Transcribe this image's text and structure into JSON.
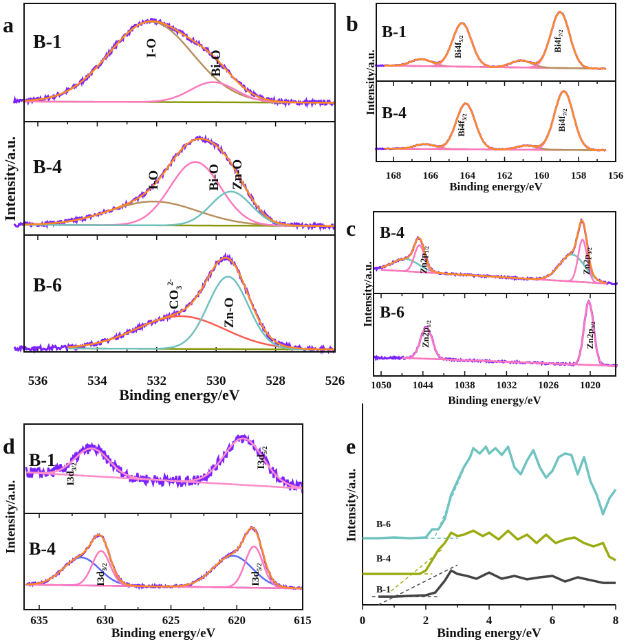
{
  "chart_data": [
    {
      "id": "a",
      "type": "line",
      "panel_letter": "a",
      "xlabel": "Binding energy/eV",
      "ylabel": "Intensity/a.u.",
      "xlim": [
        536.8,
        526
      ],
      "xticks": [
        536,
        534,
        532,
        530,
        528,
        526
      ],
      "minor_step": 1,
      "raw_color": "#7b22ff",
      "envelope_color": "#ff8a1e",
      "baseline_color": "#8a9a10",
      "noise": 0.018,
      "subplots": [
        {
          "sample": "B-1",
          "raw_range": [
            536.8,
            526
          ],
          "fit_range": [
            536.5,
            526
          ],
          "baseline": [
            0.17,
            0.16
          ],
          "components": [
            {
              "label": {
                "text": "I-O"
              },
              "center": 532.2,
              "fwhm": 3.3,
              "amp": 0.68,
              "color": "#b8905e"
            },
            {
              "label": {
                "text": "Bi-O"
              },
              "center": 530.1,
              "fwhm": 1.8,
              "amp": 0.17,
              "color": "#ff78be"
            }
          ]
        },
        {
          "sample": "B-4",
          "raw_range": [
            536.8,
            526
          ],
          "fit_range": [
            536.5,
            526
          ],
          "baseline": [
            0.09,
            0.08
          ],
          "components": [
            {
              "label": {
                "text": "I-O"
              },
              "center": 532.1,
              "fwhm": 3.5,
              "amp": 0.21,
              "color": "#b8905e"
            },
            {
              "label": {
                "text": "Bi-O"
              },
              "center": 530.7,
              "fwhm": 2.0,
              "amp": 0.56,
              "color": "#ff78be"
            },
            {
              "label": {
                "text": "Zn-O"
              },
              "center": 529.5,
              "fwhm": 1.6,
              "amp": 0.3,
              "color": "#6fc0bd"
            }
          ]
        },
        {
          "sample": "B-6",
          "raw_range": [
            536.8,
            526
          ],
          "fit_range": [
            535,
            526
          ],
          "baseline": [
            0.03,
            0.02
          ],
          "components": [
            {
              "label": {
                "text": "CO",
                "sub": "3",
                "sup": "2-"
              },
              "center": 531.2,
              "fwhm": 3.5,
              "amp": 0.28,
              "color": "#ff5a50"
            },
            {
              "label": {
                "text": "Zn-O"
              },
              "center": 529.6,
              "fwhm": 1.6,
              "amp": 0.62,
              "color": "#6fc0bd"
            }
          ]
        }
      ]
    },
    {
      "id": "b",
      "type": "line",
      "panel_letter": "b",
      "xlabel": "Binding energy/eV",
      "ylabel": "Intensity/a.u.",
      "xlim": [
        169,
        156
      ],
      "xticks": [
        168,
        166,
        164,
        162,
        160,
        158,
        156
      ],
      "minor_step": 1,
      "raw_color": "#7b22ff",
      "envelope_color": "#ff8a1e",
      "baseline_color": "#b8905e",
      "noise": 0.004,
      "subplots": [
        {
          "sample": "B-1",
          "raw_range": [
            169,
            156.5
          ],
          "fit_range": [
            168.5,
            156.5
          ],
          "baseline": [
            0.2,
            0.16
          ],
          "components": [
            {
              "center": 166.5,
              "fwhm": 1.3,
              "amp": 0.09,
              "color": "#b8905e"
            },
            {
              "label": {
                "text": "Bi4f",
                "sub": "5/2"
              },
              "center": 164.3,
              "fwhm": 1.2,
              "amp": 0.56,
              "color": "#ff78be"
            },
            {
              "center": 161.1,
              "fwhm": 1.3,
              "amp": 0.09,
              "color": "#b8905e"
            },
            {
              "label": {
                "text": "Bi4f",
                "sub": "7/2"
              },
              "center": 159.0,
              "fwhm": 1.2,
              "amp": 0.72,
              "color": "#ff78be"
            }
          ]
        },
        {
          "sample": "B-4",
          "raw_range": [
            169,
            156.5
          ],
          "fit_range": [
            168.5,
            156.5
          ],
          "baseline": [
            0.16,
            0.14
          ],
          "components": [
            {
              "center": 166.3,
              "fwhm": 1.3,
              "amp": 0.06,
              "color": "#b8905e"
            },
            {
              "label": {
                "text": "Bi4f",
                "sub": "5/2"
              },
              "center": 164.1,
              "fwhm": 1.2,
              "amp": 0.57,
              "color": "#ff78be"
            },
            {
              "center": 160.8,
              "fwhm": 1.3,
              "amp": 0.05,
              "color": "#b8905e"
            },
            {
              "label": {
                "text": "Bi4f",
                "sub": "7/2"
              },
              "center": 158.8,
              "fwhm": 1.2,
              "amp": 0.73,
              "color": "#ff78be"
            }
          ]
        }
      ]
    },
    {
      "id": "c",
      "type": "line",
      "panel_letter": "c",
      "xlabel": "Binding energy/eV",
      "ylabel": "Intensity/a.u.",
      "xlim": [
        1051,
        1016
      ],
      "xticks": [
        1050,
        1044,
        1038,
        1032,
        1026,
        1020
      ],
      "minor_step": 3,
      "raw_color": "#7b22ff",
      "envelope_color": "#ff8a1e",
      "noise": 0.012,
      "subplots": [
        {
          "sample": "B-4",
          "raw_range": [
            1051,
            1016
          ],
          "fit_range": [
            1050,
            1017.5
          ],
          "baseline": [
            0.29,
            0.12
          ],
          "baseline_color": "#6fc0bd",
          "components": [
            {
              "center": 1046.5,
              "fwhm": 4.5,
              "amp": 0.15,
              "color": "#6fc0bd"
            },
            {
              "label": {
                "text": "Zn2p",
                "sub": "1/2"
              },
              "center": 1044.5,
              "fwhm": 1.7,
              "amp": 0.33,
              "color": "#ff78be"
            },
            {
              "center": 1022.6,
              "fwhm": 4.2,
              "amp": 0.33,
              "color": "#6fc0bd"
            },
            {
              "label": {
                "text": "Zn2p",
                "sub": "3/2"
              },
              "center": 1021.1,
              "fwhm": 1.5,
              "amp": 0.52,
              "color": "#ff78be"
            }
          ]
        },
        {
          "sample": "B-6",
          "raw_range": [
            1051,
            1016
          ],
          "fit_range": [
            1047,
            1016
          ],
          "baseline": [
            0.22,
            0.12
          ],
          "baseline_color": "#ff78be",
          "no_envelope": true,
          "components": [
            {
              "label": {
                "text": "Zn2p",
                "sub": "1/2"
              },
              "center": 1043.5,
              "fwhm": 2.0,
              "amp": 0.38,
              "color": "#ff78be"
            },
            {
              "label": {
                "text": "Zn2p",
                "sub": "3/2"
              },
              "center": 1020.2,
              "fwhm": 1.6,
              "amp": 0.77,
              "color": "#ff78be"
            }
          ]
        }
      ]
    },
    {
      "id": "d",
      "type": "line",
      "panel_letter": "d",
      "xlabel": "Binding energy/eV",
      "ylabel": "Intensity/a.u.",
      "xlim": [
        636,
        615
      ],
      "xticks": [
        635,
        630,
        625,
        620,
        615
      ],
      "minor_step": 2.5,
      "raw_color": "#7b22ff",
      "envelope_color": "#ff8a1e",
      "baseline_color": "#ff78be",
      "subplots": [
        {
          "sample": "B-1",
          "raw_range": [
            636,
            615
          ],
          "fit_range": [
            636,
            615
          ],
          "baseline": [
            0.46,
            0.28
          ],
          "noise": 0.06,
          "envelope_color": "#ff8fc8",
          "components": [
            {
              "label": {
                "text": "I3d",
                "sub": "3/2"
              },
              "center": 631.0,
              "fwhm": 3.0,
              "amp": 0.31,
              "color": "#ff8fc8"
            },
            {
              "label": {
                "text": "I3d",
                "sub": "5/2"
              },
              "center": 619.5,
              "fwhm": 3.5,
              "amp": 0.52,
              "color": "#ff8fc8"
            }
          ]
        },
        {
          "sample": "B-4",
          "raw_range": [
            636,
            615
          ],
          "fit_range": [
            636,
            615
          ],
          "baseline": [
            0.26,
            0.22
          ],
          "noise": 0.012,
          "components": [
            {
              "center": 631.8,
              "fwhm": 3.2,
              "amp": 0.29,
              "color": "#5a6bff"
            },
            {
              "label": {
                "text": "I3d",
                "sub": "3/2"
              },
              "center": 630.3,
              "fwhm": 1.6,
              "amp": 0.36,
              "color": "#ff78be"
            },
            {
              "center": 620.3,
              "fwhm": 3.5,
              "amp": 0.33,
              "color": "#5a6bff"
            },
            {
              "label": {
                "text": "I3d",
                "sub": "5/2"
              },
              "center": 618.7,
              "fwhm": 1.6,
              "amp": 0.43,
              "color": "#ff78be"
            }
          ]
        }
      ]
    },
    {
      "id": "e",
      "type": "line",
      "panel_letter": "e",
      "xlabel": "Binding energy/eV",
      "ylabel": "Intensity/a.u.",
      "xlim": [
        0,
        8
      ],
      "xticks": [
        0,
        2,
        4,
        6,
        8
      ],
      "minor_step": 1,
      "ylim": [
        0,
        10
      ],
      "series": [
        {
          "name": "B-6",
          "color": "#6fc3c0",
          "x": [
            0,
            0.5,
            1,
            1.5,
            2,
            2.2,
            2.4,
            2.6,
            2.8,
            3.0,
            3.2,
            3.4,
            3.5,
            3.7,
            3.9,
            4.0,
            4.2,
            4.4,
            4.6,
            4.8,
            5.0,
            5.2,
            5.4,
            5.6,
            5.8,
            6.0,
            6.2,
            6.4,
            6.6,
            6.8,
            7.0,
            7.2,
            7.4,
            7.6,
            7.8,
            8.0
          ],
          "y": [
            3.34,
            3.34,
            3.38,
            3.34,
            3.38,
            3.79,
            3.79,
            4.31,
            5.52,
            6.21,
            6.9,
            7.41,
            7.86,
            7.59,
            7.93,
            7.59,
            7.86,
            7.52,
            7.93,
            6.9,
            6.55,
            7.24,
            7.76,
            6.9,
            6.38,
            6.72,
            7.41,
            7.59,
            7.52,
            6.55,
            7.41,
            6.21,
            5.52,
            4.55,
            5.34,
            5.79
          ],
          "guides": [
            [
              [
                0.8,
                3.34
              ],
              [
                3.0,
                3.34
              ]
            ],
            [
              [
                2.3,
                3.45
              ],
              [
                3.3,
                7.17
              ]
            ]
          ]
        },
        {
          "name": "B-4",
          "color": "#9aab10",
          "x": [
            0,
            0.5,
            1,
            1.5,
            1.8,
            2.0,
            2.2,
            2.4,
            2.6,
            2.8,
            3.0,
            3.2,
            3.5,
            3.8,
            4.0,
            4.3,
            4.6,
            4.9,
            5.2,
            5.5,
            5.8,
            6.1,
            6.4,
            6.7,
            7.0,
            7.3,
            7.6,
            7.8,
            8.0
          ],
          "y": [
            1.55,
            1.55,
            1.55,
            1.55,
            1.55,
            1.72,
            2.24,
            2.76,
            3.1,
            3.62,
            3.45,
            3.52,
            3.72,
            3.45,
            3.62,
            3.28,
            3.72,
            3.28,
            3.52,
            3.1,
            3.52,
            3.1,
            3.28,
            3.38,
            3.1,
            2.93,
            3.1,
            2.41,
            2.24
          ],
          "guides": [
            [
              [
                0,
                1.55
              ],
              [
                2.2,
                1.55
              ]
            ],
            [
              [
                0.9,
                0.69
              ],
              [
                2.5,
                2.76
              ]
            ]
          ]
        },
        {
          "name": "B-1",
          "color": "#444444",
          "x": [
            0.5,
            1,
            1.5,
            2.0,
            2.3,
            2.6,
            2.8,
            3.0,
            3.3,
            3.6,
            4.0,
            4.4,
            4.8,
            5.2,
            5.6,
            6.0,
            6.4,
            6.8,
            7.2,
            7.6,
            8.0
          ],
          "y": [
            0.41,
            0.41,
            0.45,
            0.48,
            0.62,
            1.21,
            1.72,
            1.55,
            1.45,
            1.31,
            1.62,
            1.31,
            1.45,
            1.28,
            1.38,
            1.45,
            1.17,
            1.38,
            1.24,
            1.1,
            1.1
          ],
          "guides": [
            [
              [
                0.3,
                0.41
              ],
              [
                2.4,
                0.41
              ]
            ],
            [
              [
                0.5,
                0.0
              ],
              [
                3.0,
                2.0
              ]
            ]
          ]
        }
      ]
    }
  ]
}
